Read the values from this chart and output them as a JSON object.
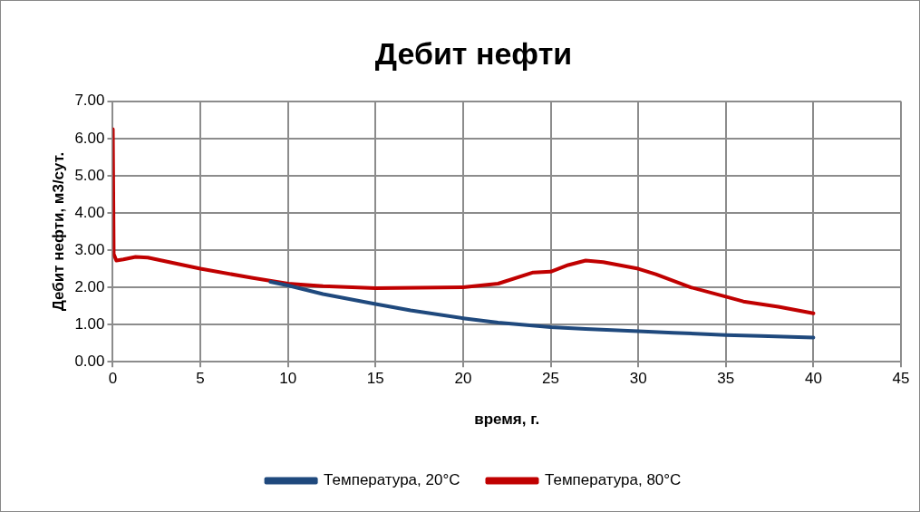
{
  "chart_data": {
    "type": "line",
    "title": "Дебит нефти",
    "xlabel": "время, г.",
    "ylabel": "Дебит нефти, м3/сут.",
    "xlim": [
      0,
      45
    ],
    "xticks": [
      0,
      5,
      10,
      15,
      20,
      25,
      30,
      35,
      40,
      45
    ],
    "ylim": [
      0,
      7
    ],
    "yticks": [
      {
        "value": 0,
        "label": "0.00"
      },
      {
        "value": 1,
        "label": "1.00"
      },
      {
        "value": 2,
        "label": "2.00"
      },
      {
        "value": 3,
        "label": "3.00"
      },
      {
        "value": 4,
        "label": "4.00"
      },
      {
        "value": 5,
        "label": "5.00"
      },
      {
        "value": 6,
        "label": "6.00"
      },
      {
        "value": 7,
        "label": "7.00"
      }
    ],
    "grid": true,
    "legend": "bottom",
    "marker": "none",
    "line_style": "solid",
    "series": [
      {
        "name": "Температура, 20°C",
        "color": "#1f497d",
        "x": [
          9,
          10,
          12,
          15,
          17,
          20,
          22,
          25,
          27,
          30,
          32,
          35,
          37,
          40
        ],
        "values": [
          2.15,
          2.05,
          1.82,
          1.55,
          1.38,
          1.17,
          1.05,
          0.93,
          0.88,
          0.82,
          0.78,
          0.72,
          0.69,
          0.65
        ]
      },
      {
        "name": "Температура, 80°C",
        "color": "#c00000",
        "x": [
          0,
          0.05,
          0.2,
          0.6,
          1.3,
          2,
          5,
          8,
          10,
          12,
          15,
          20,
          22,
          24,
          25,
          26,
          27,
          28,
          30,
          31,
          33,
          35,
          36,
          38,
          40
        ],
        "values": [
          6.25,
          2.9,
          2.72,
          2.75,
          2.82,
          2.8,
          2.5,
          2.25,
          2.1,
          2.03,
          1.98,
          2.0,
          2.1,
          2.4,
          2.42,
          2.6,
          2.72,
          2.68,
          2.5,
          2.35,
          2.0,
          1.75,
          1.62,
          1.48,
          1.3
        ]
      }
    ]
  }
}
